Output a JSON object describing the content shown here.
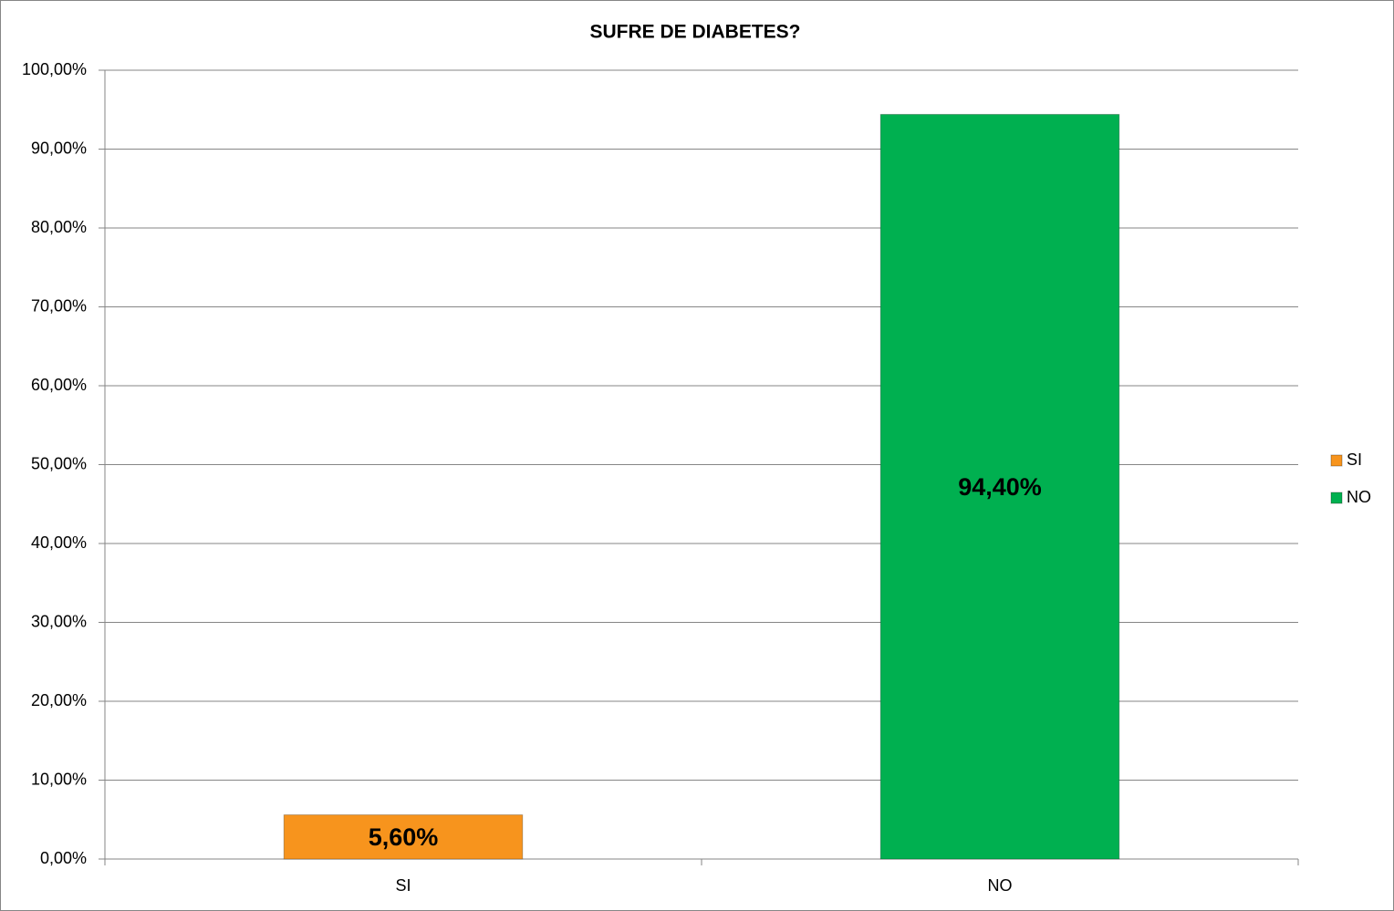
{
  "chart_data": {
    "type": "bar",
    "title": "SUFRE DE DIABETES?",
    "categories": [
      "SI",
      "NO"
    ],
    "series": [
      {
        "name": "SI",
        "color": "#f7941d",
        "values": [
          5.6,
          null
        ],
        "value_labels": [
          "5,60%",
          null
        ]
      },
      {
        "name": "NO",
        "color": "#00b050",
        "values": [
          null,
          94.4
        ],
        "value_labels": [
          null,
          "94,40%"
        ]
      }
    ],
    "ylim": [
      0,
      100
    ],
    "yticks": [
      {
        "value": 0,
        "label": "0,00%"
      },
      {
        "value": 10,
        "label": "10,00%"
      },
      {
        "value": 20,
        "label": "20,00%"
      },
      {
        "value": 30,
        "label": "30,00%"
      },
      {
        "value": 40,
        "label": "40,00%"
      },
      {
        "value": 50,
        "label": "50,00%"
      },
      {
        "value": 60,
        "label": "60,00%"
      },
      {
        "value": 70,
        "label": "70,00%"
      },
      {
        "value": 80,
        "label": "80,00%"
      },
      {
        "value": 90,
        "label": "90,00%"
      },
      {
        "value": 100,
        "label": "100,00%"
      }
    ],
    "grid": true,
    "legend": "right"
  }
}
